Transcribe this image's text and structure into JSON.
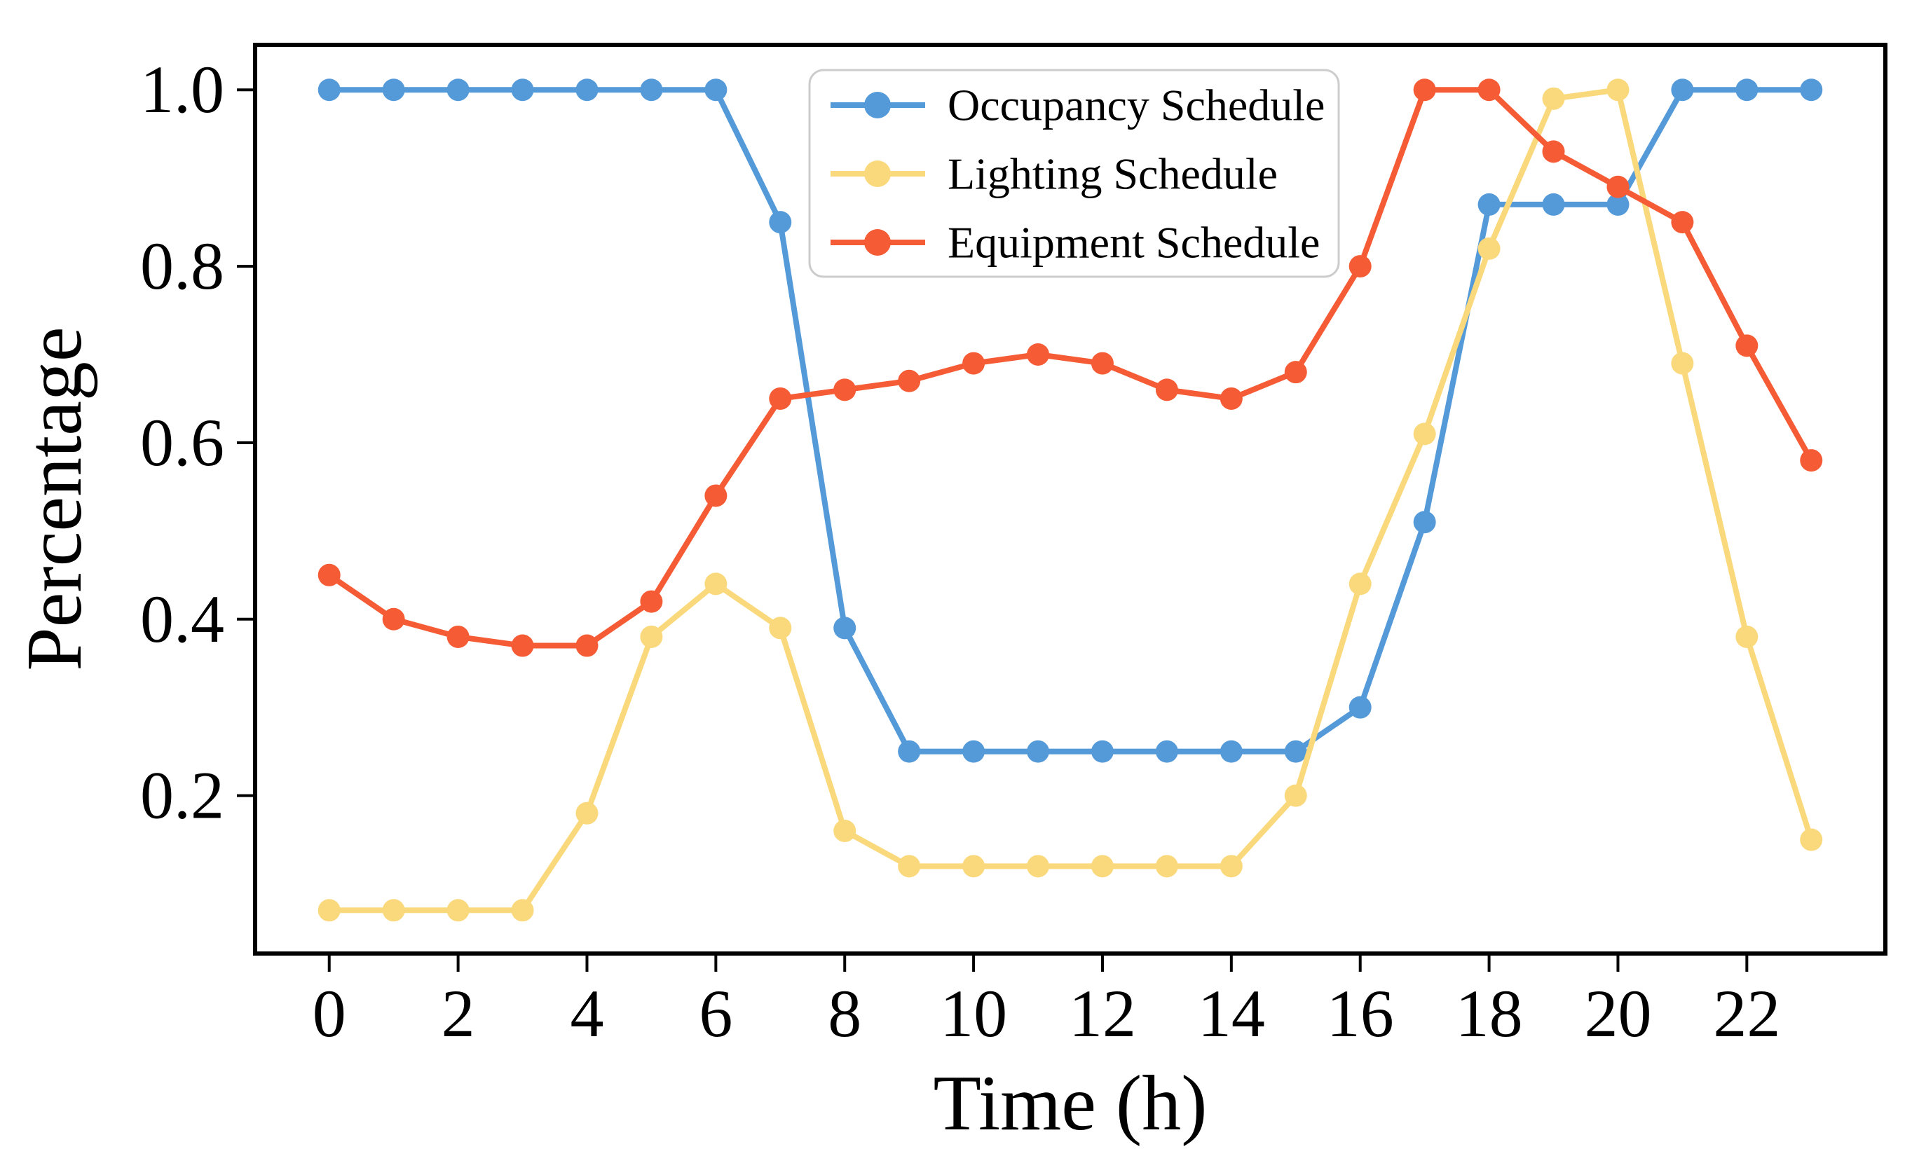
{
  "chart_data": {
    "type": "line",
    "title": "",
    "xlabel": "Time (h)",
    "ylabel": "Percentage",
    "x": [
      0,
      1,
      2,
      3,
      4,
      5,
      6,
      7,
      8,
      9,
      10,
      11,
      12,
      13,
      14,
      15,
      16,
      17,
      18,
      19,
      20,
      21,
      22,
      23
    ],
    "series": [
      {
        "name": "Occupancy Schedule",
        "color": "#549AD9",
        "values": [
          1.0,
          1.0,
          1.0,
          1.0,
          1.0,
          1.0,
          1.0,
          0.85,
          0.39,
          0.25,
          0.25,
          0.25,
          0.25,
          0.25,
          0.25,
          0.25,
          0.3,
          0.51,
          0.87,
          0.87,
          0.87,
          1.0,
          1.0,
          1.0
        ]
      },
      {
        "name": "Lighting Schedule",
        "color": "#FAD97D",
        "values": [
          0.07,
          0.07,
          0.07,
          0.07,
          0.18,
          0.38,
          0.44,
          0.39,
          0.16,
          0.12,
          0.12,
          0.12,
          0.12,
          0.12,
          0.12,
          0.2,
          0.44,
          0.61,
          0.82,
          0.99,
          1.0,
          0.69,
          0.38,
          0.15
        ]
      },
      {
        "name": "Equipment Schedule",
        "color": "#F55B35",
        "values": [
          0.45,
          0.4,
          0.38,
          0.37,
          0.37,
          0.42,
          0.54,
          0.65,
          0.66,
          0.67,
          0.69,
          0.7,
          0.69,
          0.66,
          0.65,
          0.68,
          0.8,
          1.0,
          1.0,
          0.93,
          0.89,
          0.85,
          0.71,
          0.58
        ]
      }
    ],
    "x_tick_values": [
      0,
      2,
      4,
      6,
      8,
      10,
      12,
      14,
      16,
      18,
      20,
      22
    ],
    "x_tick_labels": [
      "0",
      "2",
      "4",
      "6",
      "8",
      "10",
      "12",
      "14",
      "16",
      "18",
      "20",
      "22"
    ],
    "y_tick_values": [
      0.2,
      0.4,
      0.6,
      0.8,
      1.0
    ],
    "y_tick_labels": [
      "0.2",
      "0.4",
      "0.6",
      "0.8",
      "1.0"
    ],
    "xlim": [
      -1.15,
      24.15
    ],
    "ylim": [
      0.021,
      1.051
    ],
    "grid": false,
    "legend_position": "upper center, inside plot",
    "marker": "circle",
    "line_style": "solid"
  },
  "colors": {
    "background": "#ffffff",
    "axis": "#000000",
    "legend_border": "#cccccc",
    "legend_background": "#ffffff"
  }
}
